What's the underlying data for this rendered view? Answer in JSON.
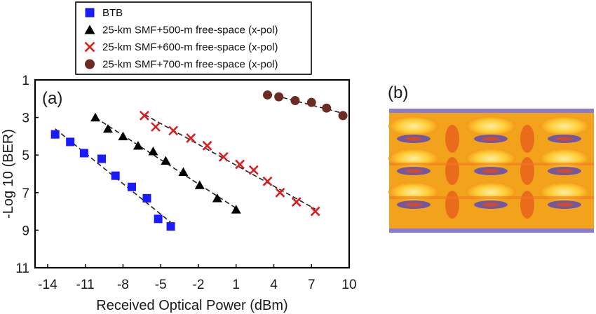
{
  "chart_data": {
    "type": "scatter",
    "panel_a_label": "(a)",
    "panel_b_label": "(b)",
    "xlabel": "Received Optical Power (dBm)",
    "ylabel": "-Log 10 (BER)",
    "xlim": [
      -15,
      10
    ],
    "ylim": [
      11,
      1
    ],
    "xticks": [
      "-14",
      "-11",
      "-8",
      "-5",
      "-2",
      "1",
      "4",
      "7",
      "10"
    ],
    "yticks": [
      "1",
      "3",
      "5",
      "7",
      "9",
      "11"
    ],
    "legend_position": "top-left, above plot",
    "series": [
      {
        "name": "BTB",
        "marker": "square",
        "color": "#1a1aff",
        "x": [
          -13.4,
          -12.2,
          -11.1,
          -9.7,
          -8.6,
          -7.3,
          -6.1,
          -5.2,
          -4.2
        ],
        "y": [
          3.9,
          4.3,
          4.9,
          5.2,
          6.1,
          6.7,
          7.3,
          8.4,
          8.8
        ]
      },
      {
        "name": "25-km SMF+500-m free-space (x-pol)",
        "marker": "triangle",
        "color": "#000000",
        "x": [
          -10.2,
          -9.2,
          -8.0,
          -6.8,
          -5.6,
          -4.6,
          -3.2,
          -1.9,
          -0.5,
          1.0
        ],
        "y": [
          3.0,
          3.6,
          4.0,
          4.5,
          4.8,
          5.3,
          5.9,
          6.6,
          7.3,
          7.9
        ]
      },
      {
        "name": "25-km SMF+600-m free-space (x-pol)",
        "marker": "x",
        "color": "#d81e1e",
        "x": [
          -6.3,
          -5.4,
          -4.0,
          -2.6,
          -1.3,
          0.0,
          1.3,
          2.4,
          3.5,
          4.5,
          5.8,
          7.3
        ],
        "y": [
          2.9,
          3.5,
          3.7,
          4.1,
          4.5,
          5.1,
          5.5,
          5.8,
          6.4,
          7.0,
          7.5,
          8.0
        ]
      },
      {
        "name": "25-km SMF+700-m free-space (x-pol)",
        "marker": "circle",
        "color": "#6b2b22",
        "x": [
          3.5,
          4.4,
          5.7,
          7.0,
          8.2,
          9.5
        ],
        "y": [
          1.8,
          1.9,
          2.1,
          2.2,
          2.5,
          2.9
        ]
      }
    ],
    "eye_diagram": {
      "colors": [
        "#f2a11a",
        "#ffd23a",
        "#e8541e",
        "#5a4ab5",
        "#fff2a0"
      ]
    }
  }
}
